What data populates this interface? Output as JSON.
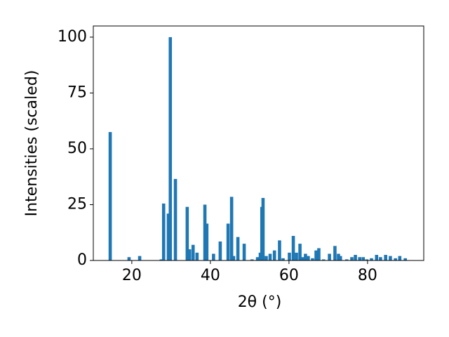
{
  "chart_data": {
    "type": "bar",
    "color": "#1f77b4",
    "xlabel": "2θ (°)",
    "ylabel": "Intensities (scaled)",
    "x": [
      14.5,
      19.3,
      22,
      27.5,
      28.1,
      29.3,
      29.8,
      31.1,
      34.1,
      34.7,
      35.6,
      36.6,
      38.6,
      39.1,
      40.8,
      42.5,
      44.5,
      45.4,
      45.9,
      47.0,
      48.6,
      50.6,
      52,
      52.7,
      53.1,
      53.4,
      54.2,
      55.2,
      56.3,
      57.6,
      58.5,
      60.1,
      61.1,
      61.9,
      62.8,
      63.5,
      64.2,
      64.9,
      66,
      66.9,
      67.6,
      68.8,
      70.3,
      71.7,
      72.6,
      73.1,
      74.7,
      76,
      76.9,
      78,
      78.9,
      79.8,
      81,
      82.3,
      83.3,
      84.6,
      85.8,
      87.1,
      88.2,
      89.6
    ],
    "values": [
      57.5,
      1.5,
      2,
      0.5,
      25.5,
      21,
      100,
      36.5,
      24,
      5,
      7,
      3.5,
      25,
      16.5,
      3,
      8.5,
      16.5,
      28.5,
      2,
      10.5,
      7.5,
      0.5,
      1.5,
      3.5,
      24,
      28,
      2,
      3,
      4.5,
      9,
      1,
      3.5,
      11,
      3.5,
      7.5,
      1.5,
      3,
      2,
      1,
      4.5,
      5.5,
      0.5,
      3,
      6.5,
      3,
      2,
      0.5,
      1.5,
      2.5,
      1.5,
      1.5,
      0.5,
      1,
      2.5,
      1.5,
      2.5,
      2,
      1,
      2,
      1
    ],
    "xlim": [
      10.2,
      94.3
    ],
    "ylim": [
      0,
      105
    ],
    "xticks": [
      20,
      40,
      60,
      80
    ],
    "yticks": [
      0,
      25,
      50,
      75,
      100
    ]
  }
}
